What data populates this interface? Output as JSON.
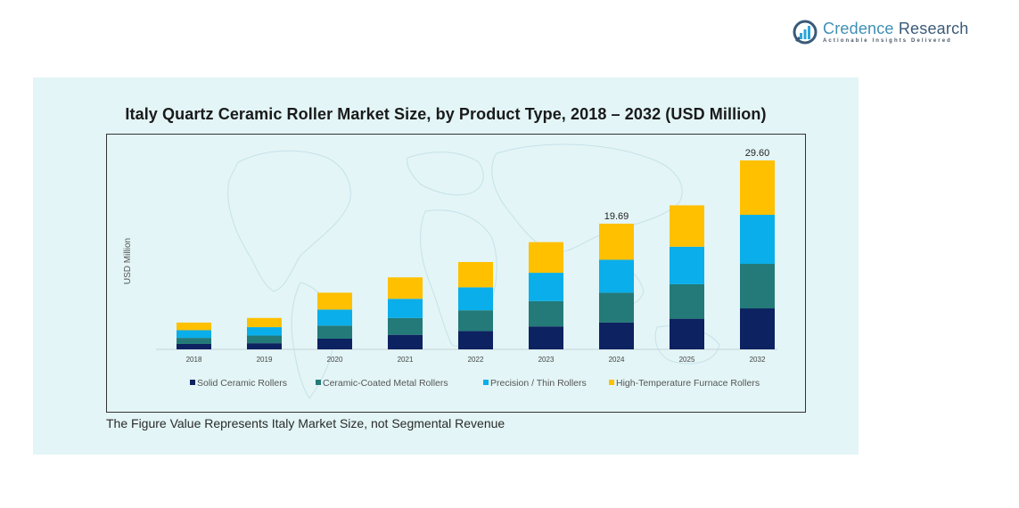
{
  "brand": {
    "name_part1": "Credence",
    "name_part2": "Research",
    "tagline": "Actionable Insights Delivered",
    "icon": "bar-chart-circle-logo-icon"
  },
  "footnote": "The Figure Value Represents Italy Market Size, not Segmental Revenue",
  "colors": {
    "panel_bg": "#e3f5f6",
    "solid": "#0d2260",
    "coated": "#237a78",
    "precision": "#0aaeea",
    "furnace": "#ffc000"
  },
  "chart_data": {
    "type": "bar",
    "stacked": true,
    "title": "Italy Quartz Ceramic Roller Market Size, by Product Type, 2018 – 2032 (USD Million)",
    "xlabel": "",
    "ylabel": "USD Million",
    "categories": [
      "2018",
      "2019",
      "2020",
      "2021",
      "2022",
      "2023",
      "2024",
      "2025",
      "2032"
    ],
    "series": [
      {
        "name": "Solid Ceramic Rollers",
        "color": "#0d2260",
        "values": [
          0.84,
          0.96,
          1.68,
          2.28,
          2.88,
          3.6,
          4.2,
          4.8,
          6.42
        ]
      },
      {
        "name": "Ceramic-Coated Metal Rollers",
        "color": "#237a78",
        "values": [
          0.96,
          1.2,
          2.04,
          2.64,
          3.24,
          3.96,
          4.68,
          5.4,
          6.98
        ]
      },
      {
        "name": "Precision / Thin Rollers",
        "color": "#0aaeea",
        "values": [
          1.2,
          1.32,
          2.52,
          3.0,
          3.6,
          4.44,
          5.16,
          5.88,
          7.68
        ]
      },
      {
        "name": "High-Temperature Furnace Rollers",
        "color": "#ffc000",
        "values": [
          1.2,
          1.44,
          2.64,
          3.36,
          3.96,
          4.8,
          5.65,
          6.48,
          8.52
        ]
      }
    ],
    "data_labels": [
      {
        "category": "2024",
        "text": "19.69"
      },
      {
        "category": "2032",
        "text": "29.60"
      }
    ],
    "ylim": [
      0,
      32
    ],
    "grid": false,
    "y_axis_visible": false,
    "legend_position": "bottom"
  }
}
